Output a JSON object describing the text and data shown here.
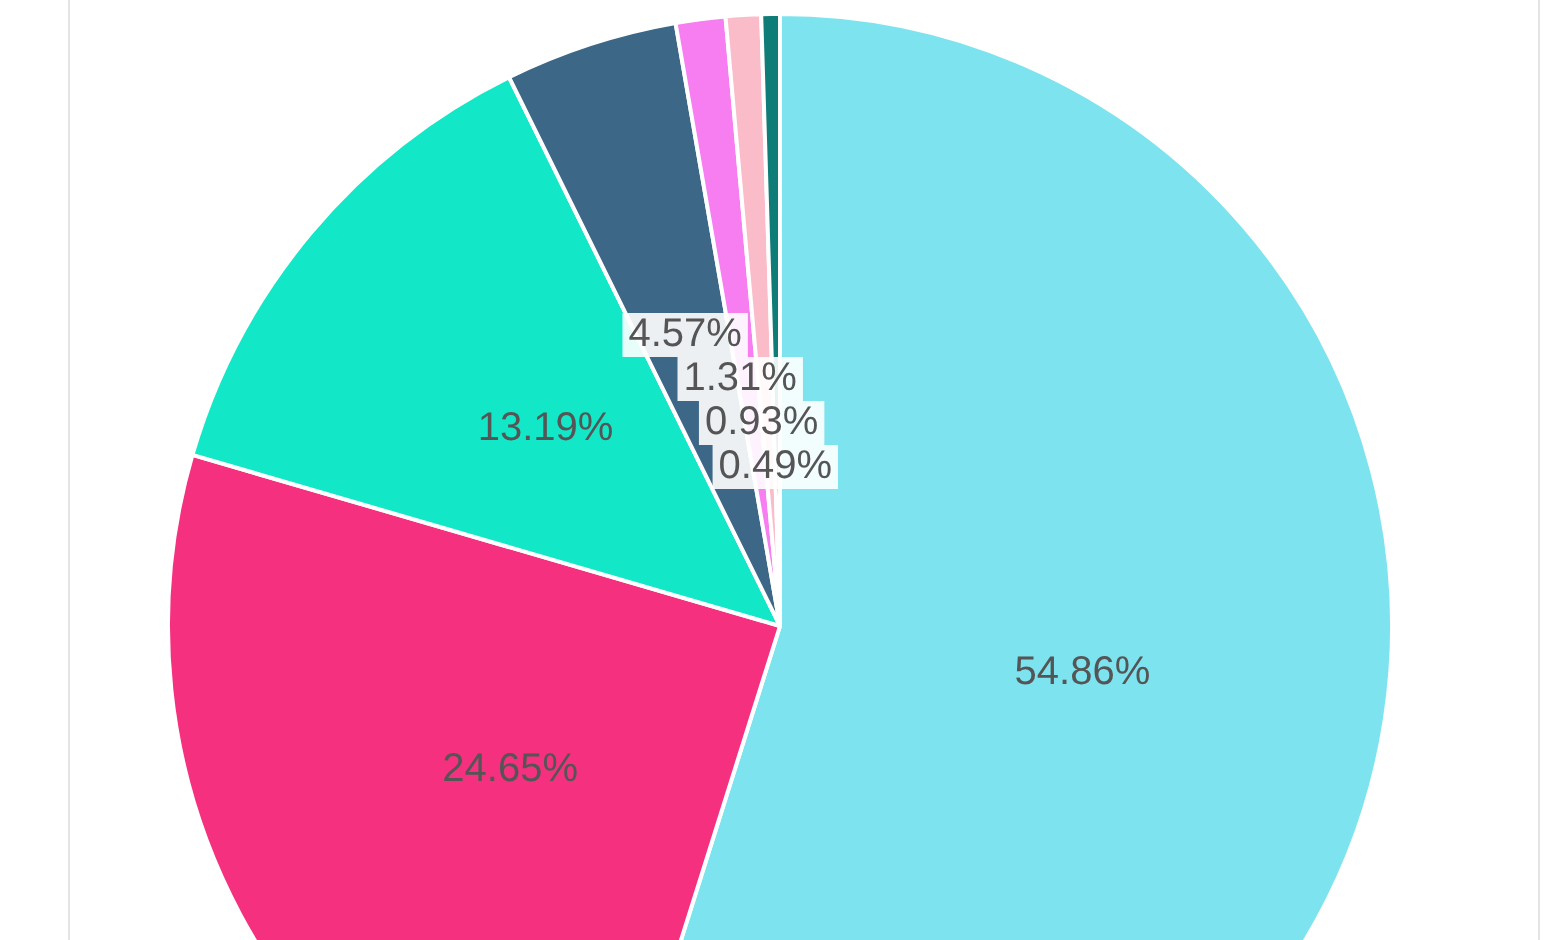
{
  "chart_data": {
    "type": "pie",
    "categories": [
      null,
      null,
      null,
      null,
      null,
      null,
      null
    ],
    "values": [
      54.86,
      24.65,
      13.19,
      4.57,
      1.31,
      0.93,
      0.49
    ],
    "colors": [
      "#7de3ef",
      "#f5317f",
      "#12e8c8",
      "#3d6787",
      "#f67ef0",
      "#f9bcc8",
      "#0f7d77"
    ],
    "value_labels": [
      "54.86%",
      "24.65%",
      "13.19%",
      "4.57%",
      "1.31%",
      "0.93%",
      "0.49%"
    ],
    "legend": false
  }
}
